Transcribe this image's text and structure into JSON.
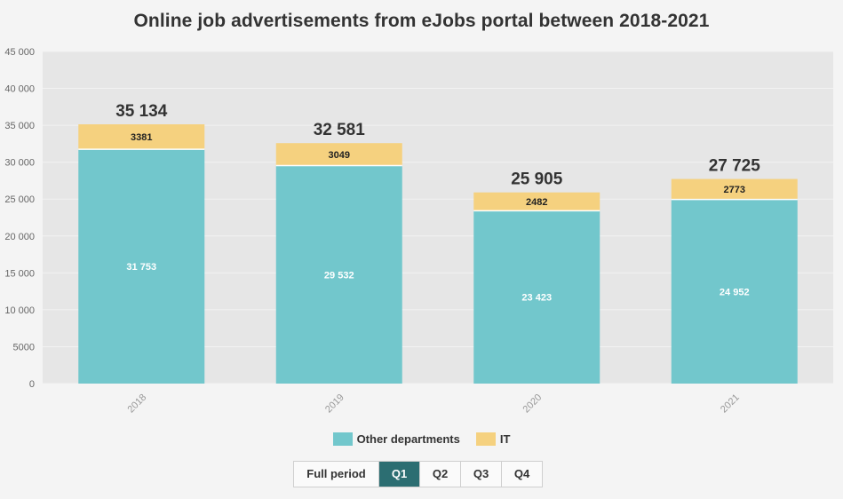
{
  "chart_data": {
    "type": "bar",
    "stacked": true,
    "title": "Online job advertisements from eJobs portal between 2018-2021",
    "categories": [
      "2018",
      "2019",
      "2020",
      "2021"
    ],
    "series": [
      {
        "name": "Other departments",
        "color": "#72c7cc",
        "values": [
          31753,
          29532,
          23423,
          24952
        ],
        "labels": [
          "31 753",
          "29 532",
          "23 423",
          "24 952"
        ]
      },
      {
        "name": "IT",
        "color": "#f5d17f",
        "values": [
          3381,
          3049,
          2482,
          2773
        ],
        "labels": [
          "3381",
          "3049",
          "2482",
          "2773"
        ]
      }
    ],
    "totals": [
      "35 134",
      "32 581",
      "25 905",
      "27 725"
    ],
    "ylim": [
      0,
      45000
    ],
    "yticks": [
      0,
      5000,
      10000,
      15000,
      20000,
      25000,
      30000,
      35000,
      40000,
      45000
    ],
    "ytick_labels": [
      "0",
      "5000",
      "10 000",
      "15 000",
      "20 000",
      "25 000",
      "30 000",
      "35 000",
      "40 000",
      "45 000"
    ],
    "grid": true,
    "legend_position": "bottom"
  },
  "legend": {
    "items": [
      "Other departments",
      "IT"
    ]
  },
  "period_tabs": {
    "items": [
      "Full period",
      "Q1",
      "Q2",
      "Q3",
      "Q4"
    ],
    "active": "Q1"
  },
  "colors": {
    "plot_bg": "#e6e6e6",
    "active_tab": "#2c6e72"
  }
}
